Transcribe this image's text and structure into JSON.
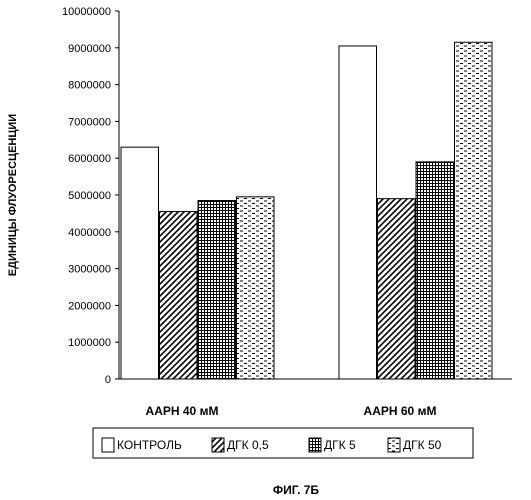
{
  "chart_data": {
    "type": "bar",
    "title": "",
    "xlabel": "",
    "ylabel": "ЕДИНИЦЫ ФЛУОРЕСЦЕНЦИИ",
    "ylim": [
      0,
      10000000
    ],
    "yticks": [
      "0",
      "1000000",
      "2000000",
      "3000000",
      "4000000",
      "5000000",
      "6000000",
      "7000000",
      "8000000",
      "9000000",
      "10000000"
    ],
    "grid": false,
    "legend_position": "bottom",
    "categories": [
      "AAPH 40 мМ",
      "AAPH 60 мМ"
    ],
    "series": [
      {
        "name": "КОНТРОЛЬ",
        "values": [
          6300000,
          9050000
        ]
      },
      {
        "name": "ДГК 0,5",
        "values": [
          4550000,
          4900000
        ]
      },
      {
        "name": "ДГК 5",
        "values": [
          4850000,
          5900000
        ]
      },
      {
        "name": "ДГК 50",
        "values": [
          4950000,
          9150000
        ]
      }
    ]
  },
  "figure_caption": "ФИГ. 7Б"
}
